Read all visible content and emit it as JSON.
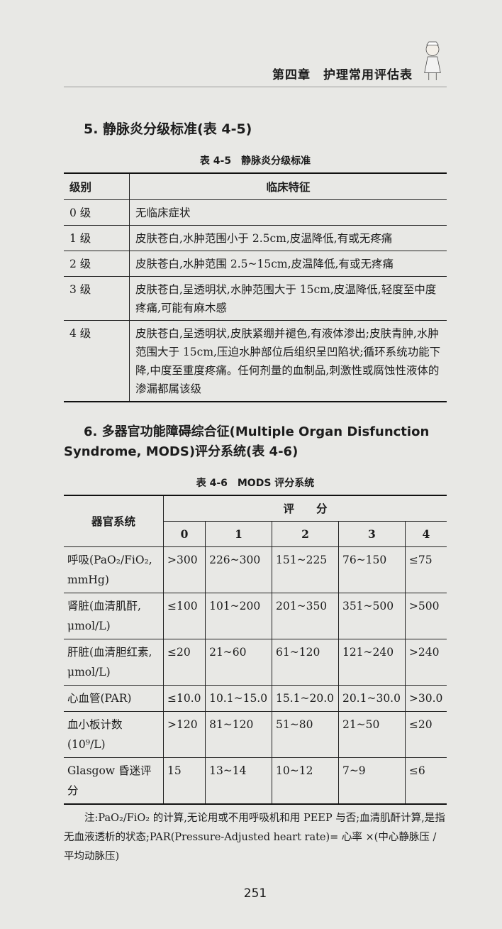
{
  "header": {
    "chapter": "第四章　护理常用评估表"
  },
  "section5": {
    "heading": "5. 静脉炎分级标准(表 4-5)",
    "caption": "表 4-5　静脉炎分级标准",
    "columns": [
      "级别",
      "临床特征"
    ],
    "rows": [
      {
        "grade": "0 级",
        "feature": "无临床症状"
      },
      {
        "grade": "1 级",
        "feature": "皮肤苍白,水肿范围小于 2.5cm,皮温降低,有或无疼痛"
      },
      {
        "grade": "2 级",
        "feature": "皮肤苍白,水肿范围 2.5~15cm,皮温降低,有或无疼痛"
      },
      {
        "grade": "3 级",
        "feature": "皮肤苍白,呈透明状,水肿范围大于 15cm,皮温降低,轻度至中度疼痛,可能有麻木感"
      },
      {
        "grade": "4 级",
        "feature": "皮肤苍白,呈透明状,皮肤紧绷并褪色,有液体渗出;皮肤青肿,水肿范围大于 15cm,压迫水肿部位后组织呈凹陷状;循环系统功能下降,中度至重度疼痛。任何剂量的血制品,刺激性或腐蚀性液体的渗漏都属该级"
      }
    ]
  },
  "section6": {
    "heading_line1": "6. 多器官功能障碍综合征(Multiple Organ Disfunction",
    "heading_line2": "Syndrome, MODS)评分系统(表 4-6)",
    "caption": "表 4-6　MODS 评分系统",
    "organ_header": "器官系统",
    "score_header": "评　　分",
    "scores": [
      "0",
      "1",
      "2",
      "3",
      "4"
    ],
    "rows": [
      {
        "organ": "呼吸(PaO₂/FiO₂, mmHg)",
        "values": [
          ">300",
          "226~300",
          "151~225",
          "76~150",
          "≤75"
        ]
      },
      {
        "organ": "肾脏(血清肌酐, μmol/L)",
        "values": [
          "≤100",
          "101~200",
          "201~350",
          "351~500",
          ">500"
        ]
      },
      {
        "organ": "肝脏(血清胆红素, μmol/L)",
        "values": [
          "≤20",
          "21~60",
          "61~120",
          "121~240",
          ">240"
        ]
      },
      {
        "organ": "心血管(PAR)",
        "values": [
          "≤10.0",
          "10.1~15.0",
          "15.1~20.0",
          "20.1~30.0",
          ">30.0"
        ]
      },
      {
        "organ": "血小板计数(10⁹/L)",
        "values": [
          ">120",
          "81~120",
          "51~80",
          "21~50",
          "≤20"
        ]
      },
      {
        "organ": "Glasgow 昏迷评分",
        "values": [
          "15",
          "13~14",
          "10~12",
          "7~9",
          "≤6"
        ]
      }
    ],
    "note": "注:PaO₂/FiO₂ 的计算,无论用或不用呼吸机和用 PEEP 与否;血清肌酐计算,是指无血液透析的状态;PAR(Pressure-Adjusted heart rate)= 心率 ×(中心静脉压 / 平均动脉压)"
  },
  "footer": {
    "page_number": "251"
  }
}
